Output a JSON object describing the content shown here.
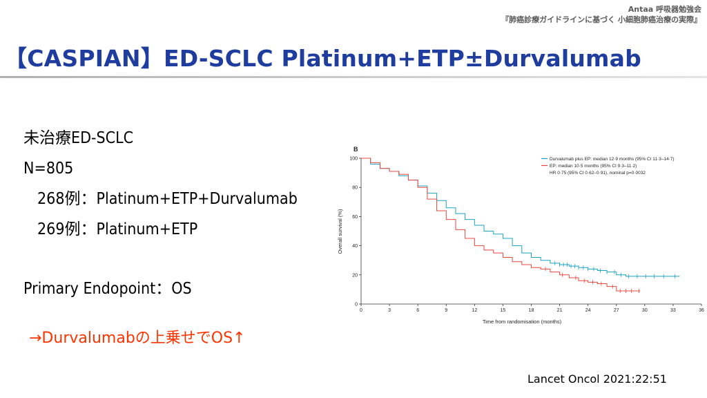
{
  "header": {
    "org": "Antaa 呼吸器勉強会",
    "series": "『肺癌診療ガイドラインに基づく 小細胞肺癌治療の実際』"
  },
  "title": "【CASPIAN】ED-SCLC Platinum+ETP±Durvalumab",
  "bullets": {
    "population": "未治療ED-SCLC",
    "n": "N=805",
    "arm1": "268例：Platinum+ETP+Durvalumab",
    "arm2": "269例：Platinum+ETP",
    "endpoint": "Primary Endopoint：OS"
  },
  "conclusion": "→Durvalumabの上乗せでOS↑",
  "citation": "Lancet Oncol 2021:22:51",
  "chart_data": {
    "type": "line",
    "panel_label": "B",
    "xlabel": "Time from randomisation (months)",
    "ylabel": "Overall survival (%)",
    "xlim": [
      0,
      36
    ],
    "ylim": [
      0,
      100
    ],
    "x_ticks": [
      0,
      3,
      6,
      9,
      12,
      15,
      18,
      21,
      24,
      27,
      30,
      33,
      36
    ],
    "y_ticks": [
      0,
      20,
      40,
      60,
      80,
      100
    ],
    "grid": false,
    "legend_position": "top-right",
    "stats_text": "HR 0·75 (95% CI 0·62–0·91), nominal p=0·0032",
    "series": [
      {
        "name": "Durvalumab plus EP: median 12·9 months (95% CI 11·3–14·7)",
        "color": "#1aa3c4",
        "x": [
          0,
          1,
          2,
          3,
          4,
          5,
          6,
          7,
          8,
          9,
          10,
          11,
          12,
          13,
          14,
          15,
          16,
          17,
          18,
          19,
          20,
          21,
          22,
          23,
          24,
          25,
          26,
          27,
          28,
          29,
          30,
          31,
          32,
          33,
          33.7
        ],
        "y": [
          100,
          96,
          93,
          91,
          88,
          85,
          81,
          76,
          71,
          66,
          62,
          58,
          54,
          50,
          48,
          45,
          40,
          35,
          32,
          30,
          28,
          27,
          26,
          25,
          24,
          23,
          22,
          20,
          19,
          19,
          19,
          19,
          19,
          19,
          19
        ],
        "censored_x": [
          20.5,
          21,
          21.4,
          21.8,
          22.2,
          22.6,
          23,
          23.5,
          24,
          24.6,
          25.3,
          26,
          26.8,
          27.5,
          28.3,
          29.2,
          30.1,
          31,
          32,
          33.2
        ]
      },
      {
        "name": "EP: median 10·5 months (95% CI 9·3–11·2)",
        "color": "#e8473c",
        "x": [
          0,
          1,
          2,
          3,
          4,
          5,
          6,
          7,
          8,
          9,
          10,
          11,
          12,
          13,
          14,
          15,
          16,
          17,
          18,
          19,
          20,
          21,
          22,
          23,
          24,
          25,
          26,
          27,
          28,
          29,
          29.5
        ],
        "y": [
          100,
          97,
          93,
          91,
          89,
          85,
          80,
          72,
          64,
          58,
          51,
          45,
          40,
          37,
          35,
          32,
          29,
          27,
          25,
          24,
          22,
          20,
          18,
          16,
          15,
          14,
          12,
          9,
          9,
          9,
          9
        ],
        "censored_x": [
          19.5,
          21.3,
          22.7,
          23.6,
          24.5,
          25.4,
          26.6,
          27.4,
          28,
          28.6,
          29.4
        ]
      }
    ]
  }
}
